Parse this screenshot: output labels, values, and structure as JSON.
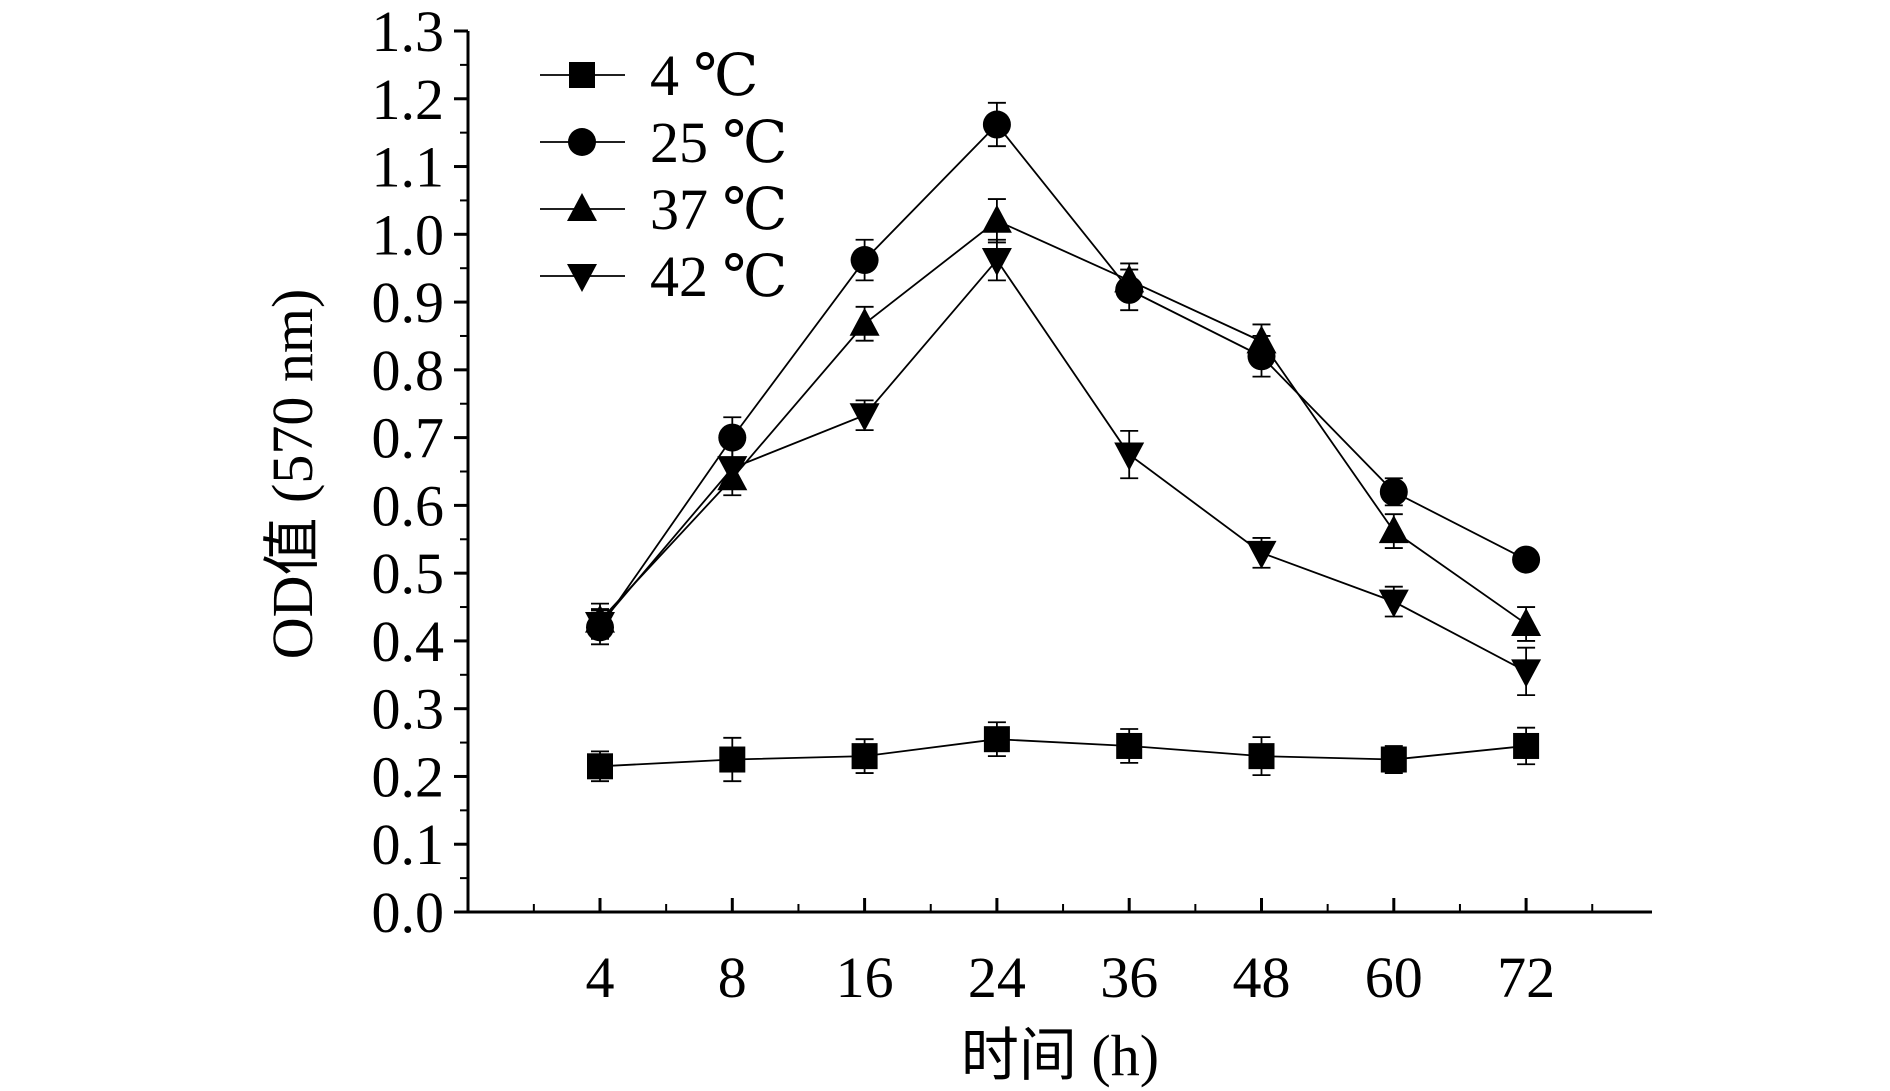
{
  "chart_data": {
    "type": "line",
    "xlabel": "时间 (h)",
    "ylabel": "OD值 (570 nm)",
    "categories": [
      "4",
      "8",
      "16",
      "24",
      "36",
      "48",
      "60",
      "72"
    ],
    "ylim": [
      0.0,
      1.3
    ],
    "yticks": [
      "0.0",
      "0.1",
      "0.2",
      "0.3",
      "0.4",
      "0.5",
      "0.6",
      "0.7",
      "0.8",
      "0.9",
      "1.0",
      "1.1",
      "1.2",
      "1.3"
    ],
    "legend_position": "top-left",
    "series": [
      {
        "name": "4 ℃",
        "marker": "square",
        "values": [
          0.215,
          0.225,
          0.23,
          0.255,
          0.245,
          0.23,
          0.225,
          0.245
        ],
        "errors": [
          0.022,
          0.032,
          0.025,
          0.025,
          0.025,
          0.028,
          0.02,
          0.027
        ]
      },
      {
        "name": "25 ℃",
        "marker": "circle",
        "values": [
          0.42,
          0.7,
          0.962,
          1.162,
          0.918,
          0.82,
          0.62,
          0.52
        ],
        "errors": [
          0.025,
          0.03,
          0.03,
          0.032,
          0.03,
          0.03,
          0.02,
          0.012
        ]
      },
      {
        "name": "37 ℃",
        "marker": "triangle-up",
        "values": [
          0.43,
          0.64,
          0.868,
          1.02,
          0.932,
          0.842,
          0.562,
          0.425
        ],
        "errors": [
          0.025,
          0.025,
          0.025,
          0.032,
          0.025,
          0.025,
          0.025,
          0.025
        ]
      },
      {
        "name": "42 ℃",
        "marker": "triangle-down",
        "values": [
          0.425,
          0.655,
          0.733,
          0.962,
          0.675,
          0.53,
          0.458,
          0.355
        ],
        "errors": [
          0.022,
          0.03,
          0.022,
          0.03,
          0.035,
          0.022,
          0.022,
          0.035
        ]
      }
    ]
  }
}
